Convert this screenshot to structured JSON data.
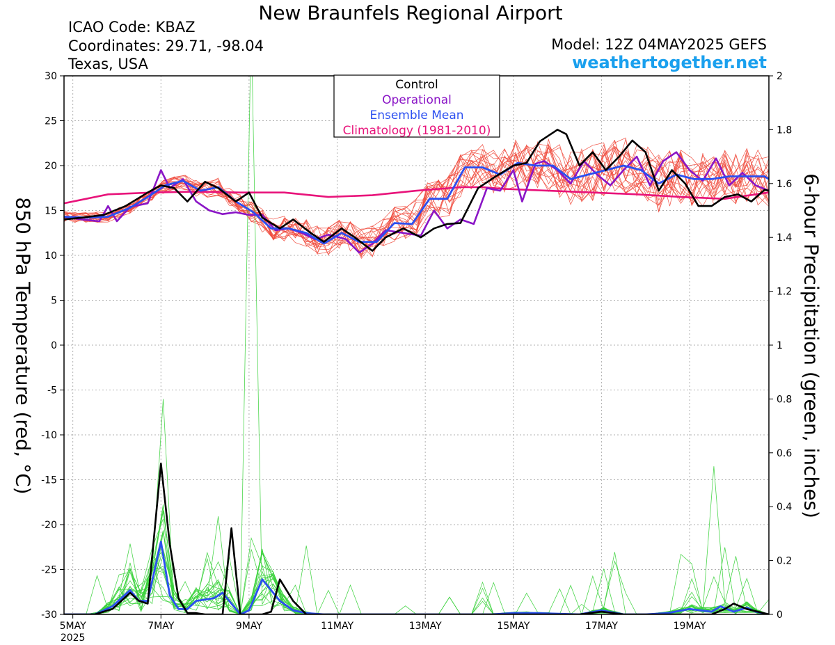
{
  "header": {
    "title": "New Braunfels Regional Airport",
    "icao": "ICAO Code: KBAZ",
    "coordinates": "Coordinates: 29.71, -98.04",
    "region": "Texas, USA",
    "model": "Model: 12Z 04MAY2025 GEFS",
    "brand": "weathertogether.net"
  },
  "colors": {
    "members_temp": "#f04a3c",
    "members_precip": "#39d13a",
    "control": "#000000",
    "operational": "#8a15c6",
    "ensemble_mean": "#2b4ff0",
    "climatology": "#e8137a",
    "grid": "#b0b0b0"
  },
  "chart_data": {
    "type": "line",
    "title": "New Braunfels Regional Airport",
    "ylabel": "850 hPa Temperature (red, °C)",
    "ylabel_right": "6-hour Precipitation (green, inches)",
    "x_unit": "days since 2025-05-04 12Z",
    "xlim": [
      0.3,
      16.3
    ],
    "ylim": [
      -30,
      30
    ],
    "ylim_right": [
      0,
      2
    ],
    "y_ticks": [
      30,
      25,
      20,
      15,
      10,
      5,
      0,
      -5,
      -10,
      -15,
      -20,
      -25,
      -30
    ],
    "y_ticks_right": [
      2,
      1.8,
      1.6,
      1.4,
      1.2,
      1,
      0.8,
      0.6,
      0.4,
      0.2,
      0
    ],
    "x_ticks": [
      {
        "x": 0.5,
        "label": "5MAY"
      },
      {
        "x": 2.5,
        "label": "7MAY"
      },
      {
        "x": 4.5,
        "label": "9MAY"
      },
      {
        "x": 6.5,
        "label": "11MAY"
      },
      {
        "x": 8.5,
        "label": "13MAY"
      },
      {
        "x": 10.5,
        "label": "15MAY"
      },
      {
        "x": 12.5,
        "label": "17MAY"
      },
      {
        "x": 14.5,
        "label": "19MAY"
      }
    ],
    "x_year_label": "2025",
    "grid": true,
    "legend": {
      "position": "top-center",
      "entries": [
        "Control",
        "Operational",
        "Ensemble Mean",
        "Climatology (1981-2010)"
      ]
    },
    "series": [
      {
        "name": "Control",
        "axis": "left",
        "x": [
          0.3,
          0.7,
          1.2,
          1.7,
          2.2,
          2.5,
          2.8,
          3.1,
          3.5,
          3.8,
          4.2,
          4.5,
          4.8,
          5.2,
          5.5,
          5.9,
          6.2,
          6.6,
          6.9,
          7.3,
          7.6,
          8.0,
          8.4,
          8.7,
          9.0,
          9.3,
          9.7,
          10.1,
          10.5,
          10.8,
          11.1,
          11.5,
          11.7,
          12.0,
          12.3,
          12.6,
          12.9,
          13.2,
          13.5,
          13.8,
          14.1,
          14.4,
          14.7,
          15.0,
          15.3,
          15.6,
          15.9,
          16.2,
          16.3
        ],
        "y": [
          14,
          14.2,
          14.5,
          15.5,
          17,
          17.8,
          17.5,
          16,
          18.2,
          17.5,
          16,
          17,
          14.2,
          13,
          14,
          12.5,
          11.5,
          13,
          12,
          10.5,
          12,
          13,
          12,
          13,
          13.5,
          13.6,
          17.5,
          18.8,
          20,
          20.3,
          22.7,
          24,
          23.5,
          20,
          21.5,
          19.5,
          21,
          22.8,
          21.5,
          17.2,
          19.5,
          18,
          15.5,
          15.5,
          16.5,
          16.8,
          16,
          17.3,
          17.2
        ]
      },
      {
        "name": "Operational",
        "axis": "left",
        "x": [
          0.3,
          0.7,
          1.1,
          1.3,
          1.5,
          1.8,
          2.2,
          2.5,
          2.7,
          3.0,
          3.3,
          3.6,
          3.9,
          4.2,
          4.5,
          4.8,
          5.1,
          5.4,
          5.7,
          6.0,
          6.3,
          6.7,
          7.0,
          7.3,
          7.6,
          8.0,
          8.4,
          8.7,
          9.0,
          9.3,
          9.6,
          9.9,
          10.2,
          10.5,
          10.7,
          11.0,
          11.2,
          11.5,
          11.8,
          12.1,
          12.4,
          12.7,
          13.0,
          13.3,
          13.6,
          13.9,
          14.2,
          14.5,
          14.8,
          15.1,
          15.4,
          15.7,
          16.0,
          16.3
        ],
        "y": [
          14.3,
          14,
          13.8,
          15.5,
          13.8,
          15.4,
          15.8,
          19.5,
          17.5,
          18.5,
          16,
          15,
          14.6,
          14.8,
          14.5,
          14.5,
          12.8,
          13,
          12.5,
          11.8,
          12.3,
          11.8,
          10.3,
          11.3,
          12.8,
          12.5,
          12.2,
          15,
          13,
          14,
          13.5,
          17.5,
          17.2,
          19.5,
          16,
          20.2,
          20.5,
          19.5,
          18,
          20.5,
          19,
          17.8,
          19.5,
          21,
          17.8,
          20.5,
          21.5,
          19.5,
          18.3,
          20.8,
          17.8,
          19.2,
          17.8,
          17.2
        ]
      },
      {
        "name": "Ensemble Mean",
        "axis": "left",
        "x": [
          0.3,
          0.8,
          1.3,
          1.8,
          2.2,
          2.6,
          3.0,
          3.4,
          3.8,
          4.2,
          4.6,
          5.0,
          5.4,
          5.8,
          6.2,
          6.6,
          7.0,
          7.4,
          7.8,
          8.2,
          8.6,
          9.0,
          9.4,
          9.8,
          10.2,
          10.6,
          11.0,
          11.4,
          11.8,
          12.2,
          12.6,
          13.0,
          13.4,
          13.8,
          14.2,
          14.6,
          15.0,
          15.4,
          15.8,
          16.2,
          16.3
        ],
        "y": [
          14.3,
          14.2,
          14.3,
          15.3,
          16.5,
          17.8,
          18.3,
          17.2,
          17.6,
          16,
          14.8,
          13,
          13,
          12.5,
          11.3,
          12.5,
          11.5,
          11.5,
          13.6,
          13.5,
          16.3,
          16.3,
          19.8,
          19.8,
          19,
          20.3,
          20,
          20,
          18.5,
          19,
          19.5,
          20,
          19.5,
          18,
          19,
          18.5,
          18.5,
          18.8,
          18.8,
          18.8,
          18.5
        ]
      },
      {
        "name": "Climatology (1981-2010)",
        "axis": "left",
        "x": [
          0.3,
          1.3,
          2.3,
          3.3,
          4.3,
          5.3,
          6.3,
          7.3,
          8.3,
          9.3,
          9.8,
          10.3,
          11.3,
          12.3,
          13.3,
          14.3,
          15.3,
          16.3
        ],
        "y": [
          15.8,
          16.8,
          17,
          17.1,
          17,
          17,
          16.5,
          16.7,
          17.2,
          17.6,
          17.6,
          17.4,
          17.2,
          17,
          16.8,
          16.5,
          16.3,
          17
        ]
      },
      {
        "name": "Control precipitation",
        "axis": "right",
        "x": [
          0.3,
          1.0,
          1.4,
          1.8,
          2.0,
          2.2,
          2.5,
          2.7,
          2.9,
          3.1,
          3.3,
          3.5,
          3.7,
          3.9,
          4.1,
          4.3,
          4.5,
          4.8,
          5.0,
          5.2,
          5.5,
          5.8,
          6.2,
          6.6,
          7.0,
          8.0,
          9.0,
          10.0,
          11.0,
          11.5,
          11.8,
          12.0,
          12.5,
          13.0,
          13.5,
          14.0,
          14.5,
          15.0,
          15.3,
          15.5,
          15.8,
          16.3
        ],
        "y": [
          0,
          0,
          0.02,
          0.08,
          0.05,
          0.04,
          0.56,
          0.26,
          0.06,
          0.005,
          0.005,
          0,
          0,
          0,
          0.32,
          0,
          0,
          0,
          0.01,
          0.13,
          0.05,
          0,
          0,
          0,
          0,
          0,
          0,
          0,
          0,
          0,
          0,
          0,
          0.01,
          0,
          0,
          0,
          0,
          0,
          0.02,
          0.04,
          0.02,
          0
        ]
      },
      {
        "name": "Ensemble mean precipitation",
        "axis": "right",
        "x": [
          0.3,
          1.0,
          1.4,
          1.8,
          2.0,
          2.2,
          2.5,
          2.7,
          2.9,
          3.1,
          3.3,
          3.5,
          3.7,
          3.9,
          4.1,
          4.3,
          4.5,
          4.8,
          5.0,
          5.2,
          5.5,
          5.8,
          6.2,
          6.6,
          7.0,
          8.0,
          9.0,
          10.0,
          10.5,
          11.0,
          12.0,
          12.5,
          13.0,
          13.5,
          14.0,
          14.5,
          15.0,
          15.2,
          15.5,
          15.8,
          16.0,
          16.3
        ],
        "y": [
          0,
          0,
          0.03,
          0.09,
          0.05,
          0.05,
          0.27,
          0.07,
          0.02,
          0.02,
          0.05,
          0.055,
          0.06,
          0.08,
          0.04,
          0,
          0.015,
          0.13,
          0.09,
          0.05,
          0.015,
          0.005,
          0,
          0,
          0,
          0,
          0,
          0,
          0.005,
          0.005,
          0,
          0.015,
          0,
          0,
          0.005,
          0.02,
          0.01,
          0.03,
          0.01,
          0.025,
          0.01,
          0
        ]
      },
      {
        "name": "Ensemble member temperatures",
        "axis": "left",
        "count": 20
      },
      {
        "name": "Ensemble member precipitation",
        "axis": "right",
        "count": 20
      }
    ]
  }
}
